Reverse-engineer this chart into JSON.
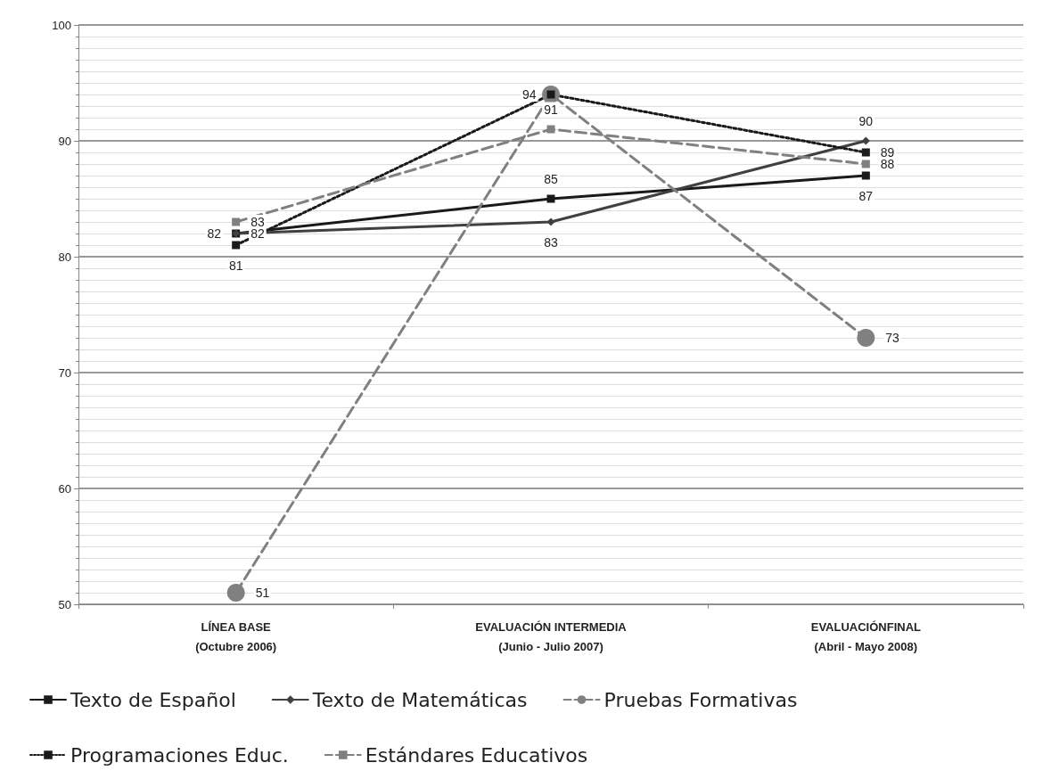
{
  "chart_data": {
    "type": "line",
    "categories": [
      "LÍNEA BASE\n(Octubre 2006)",
      "EVALUACIÓN INTERMEDIA\n(Junio - Julio 2007)",
      "EVALUACIÓNFINAL\n(Abril - Mayo 2008)"
    ],
    "ylim": [
      50,
      100
    ],
    "yticks": [
      50,
      60,
      70,
      80,
      90,
      100
    ],
    "grid": "y",
    "legend": "bottom",
    "series": [
      {
        "name": "Texto de Español",
        "color": "#1a1a1a",
        "values": [
          82,
          85,
          87
        ],
        "value_labels": [
          "82",
          "85",
          "87"
        ],
        "marker": "square",
        "line_style": "solid"
      },
      {
        "name": "Texto de Matemáticas",
        "color": "#404040",
        "values": [
          82,
          83,
          90
        ],
        "value_labels": [
          "82",
          "83",
          "90"
        ],
        "marker": "diamond",
        "line_style": "solid"
      },
      {
        "name": "Pruebas Formativas",
        "color": "#808080",
        "values": [
          51,
          94,
          73
        ],
        "value_labels": [
          "51",
          null,
          "73"
        ],
        "marker": "circle",
        "line_style": "dashed"
      },
      {
        "name": "Programaciones Educ.",
        "color": "#1a1a1a",
        "values": [
          81,
          94,
          89
        ],
        "value_labels": [
          "81",
          "94",
          "89"
        ],
        "marker": "square",
        "line_style": "dotted"
      },
      {
        "name": "Estándares Educativos",
        "color": "#808080",
        "values": [
          83,
          91,
          88
        ],
        "value_labels": [
          "83",
          "91",
          "88"
        ],
        "marker": "square",
        "line_style": "dashed"
      }
    ]
  }
}
